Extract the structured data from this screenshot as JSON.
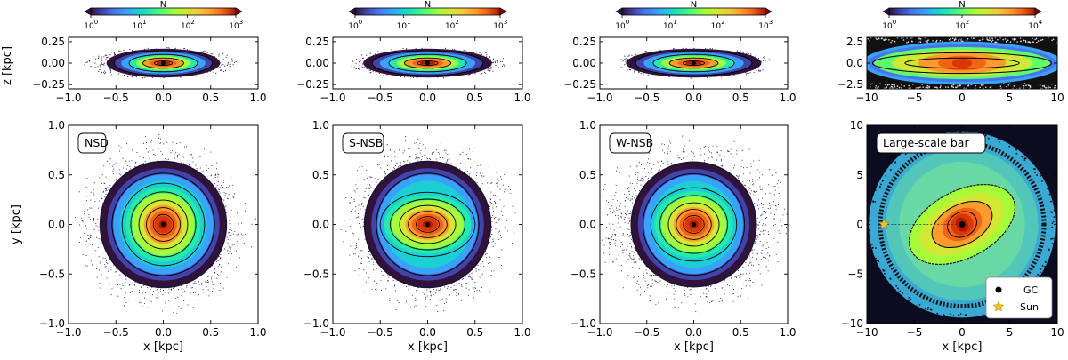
{
  "colorbar_label": "N",
  "chart_data": [
    {
      "type": "heatmap",
      "panel": "NSD",
      "label": "NSD",
      "xlabel": "x [kpc]",
      "ylabel": "y [kpc]",
      "zlabel": "z [kpc]",
      "xlim": [
        -1.0,
        1.0
      ],
      "ylim": [
        -1.0,
        1.0
      ],
      "zlim": [
        -0.3,
        0.3
      ],
      "xticks": [
        "−1.0",
        "−0.5",
        "0.0",
        "0.5",
        "1.0"
      ],
      "yticks": [
        "−1.0",
        "−0.5",
        "0.0",
        "0.5",
        "1.0"
      ],
      "zticks": [
        "−0.25",
        "0.00",
        "0.25"
      ],
      "colorbar": {
        "label": "N",
        "scale": "log",
        "ticks": [
          "10",
          "10",
          "10",
          "10"
        ],
        "tick_exps": [
          "0",
          "1",
          "2",
          "3"
        ],
        "max_exp": 3
      },
      "shape": "round"
    },
    {
      "type": "heatmap",
      "panel": "S-NSB",
      "label": "S-NSB",
      "xlabel": "x [kpc]",
      "ylabel": "",
      "xlim": [
        -1.0,
        1.0
      ],
      "ylim": [
        -1.0,
        1.0
      ],
      "zlim": [
        -0.3,
        0.3
      ],
      "xticks": [
        "−1.0",
        "−0.5",
        "0.0",
        "0.5",
        "1.0"
      ],
      "yticks": [
        "−1.0",
        "−0.5",
        "0.0",
        "0.5",
        "1.0"
      ],
      "zticks": [
        "−0.25",
        "0.00",
        "0.25"
      ],
      "colorbar": {
        "label": "N",
        "scale": "log",
        "ticks": [
          "10",
          "10",
          "10",
          "10"
        ],
        "tick_exps": [
          "0",
          "1",
          "2",
          "3"
        ],
        "max_exp": 3
      },
      "shape": "elongated"
    },
    {
      "type": "heatmap",
      "panel": "W-NSB",
      "label": "W-NSB",
      "xlabel": "x [kpc]",
      "ylabel": "",
      "xlim": [
        -1.0,
        1.0
      ],
      "ylim": [
        -1.0,
        1.0
      ],
      "zlim": [
        -0.3,
        0.3
      ],
      "xticks": [
        "−1.0",
        "−0.5",
        "0.0",
        "0.5",
        "1.0"
      ],
      "yticks": [
        "−1.0",
        "−0.5",
        "0.0",
        "0.5",
        "1.0"
      ],
      "zticks": [
        "−0.25",
        "0.00",
        "0.25"
      ],
      "colorbar": {
        "label": "N",
        "scale": "log",
        "ticks": [
          "10",
          "10",
          "10",
          "10"
        ],
        "tick_exps": [
          "0",
          "1",
          "2",
          "3"
        ],
        "max_exp": 3
      },
      "shape": "wide"
    },
    {
      "type": "heatmap",
      "panel": "Large-scale bar",
      "label": "Large-scale bar",
      "xlabel": "x [kpc]",
      "ylabel": "",
      "xlim": [
        -10,
        10
      ],
      "ylim": [
        -10,
        10
      ],
      "zlim": [
        -3,
        3
      ],
      "xticks": [
        "−10",
        "−5",
        "0",
        "5",
        "10"
      ],
      "yticks": [
        "−10",
        "−5",
        "0",
        "5",
        "10"
      ],
      "zticks": [
        "−2.5",
        "0.0",
        "2.5"
      ],
      "colorbar": {
        "label": "N",
        "scale": "log",
        "ticks": [
          "10",
          "10",
          "10"
        ],
        "tick_exps": [
          "0",
          "2",
          "4"
        ],
        "max_exp": 4
      },
      "shape": "bar",
      "bar_angle_deg": -28,
      "markers": [
        {
          "name": "GC",
          "x": 0,
          "y": 0,
          "symbol": "circle",
          "color": "#000000"
        },
        {
          "name": "Sun",
          "x": -8.2,
          "y": 0,
          "symbol": "star",
          "color": "#f7c21b"
        }
      ],
      "legend": {
        "placement": "bottom-right",
        "entries": [
          "GC",
          "Sun"
        ]
      }
    }
  ],
  "colormap": [
    "#30123b",
    "#4145ab",
    "#4675ed",
    "#39a2fc",
    "#1bcfd4",
    "#24eca6",
    "#61fc6c",
    "#a4fc3b",
    "#d1e834",
    "#f3c63a",
    "#fe9b2d",
    "#f36315",
    "#d93806",
    "#b11901",
    "#7a0402"
  ]
}
